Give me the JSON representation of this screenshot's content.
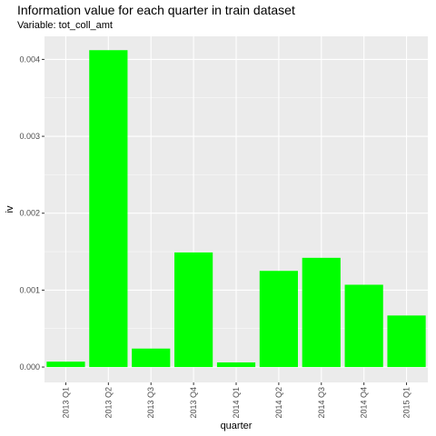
{
  "title": "Information value for each quarter in train dataset",
  "subtitle": "Variable: tot_coll_amt",
  "chart_data": {
    "type": "bar",
    "title": "Information value for each quarter in train dataset",
    "subtitle": "Variable: tot_coll_amt",
    "xlabel": "quarter",
    "ylabel": "iv",
    "categories": [
      "2013 Q1",
      "2013 Q2",
      "2013 Q3",
      "2013 Q4",
      "2014 Q1",
      "2014 Q2",
      "2014 Q3",
      "2014 Q4",
      "2015 Q1"
    ],
    "values": [
      7e-05,
      0.00412,
      0.00024,
      0.00149,
      6e-05,
      0.00125,
      0.00142,
      0.00107,
      0.00067
    ],
    "yticks": [
      0.0,
      0.001,
      0.002,
      0.003,
      0.004
    ],
    "ytick_labels": [
      "0.000",
      "0.001",
      "0.002",
      "0.003",
      "0.004"
    ],
    "ylim": [
      -0.0002,
      0.0043
    ],
    "bar_color": "#00ff00",
    "panel_color": "#ebebeb",
    "grid": true,
    "legend": "none"
  }
}
